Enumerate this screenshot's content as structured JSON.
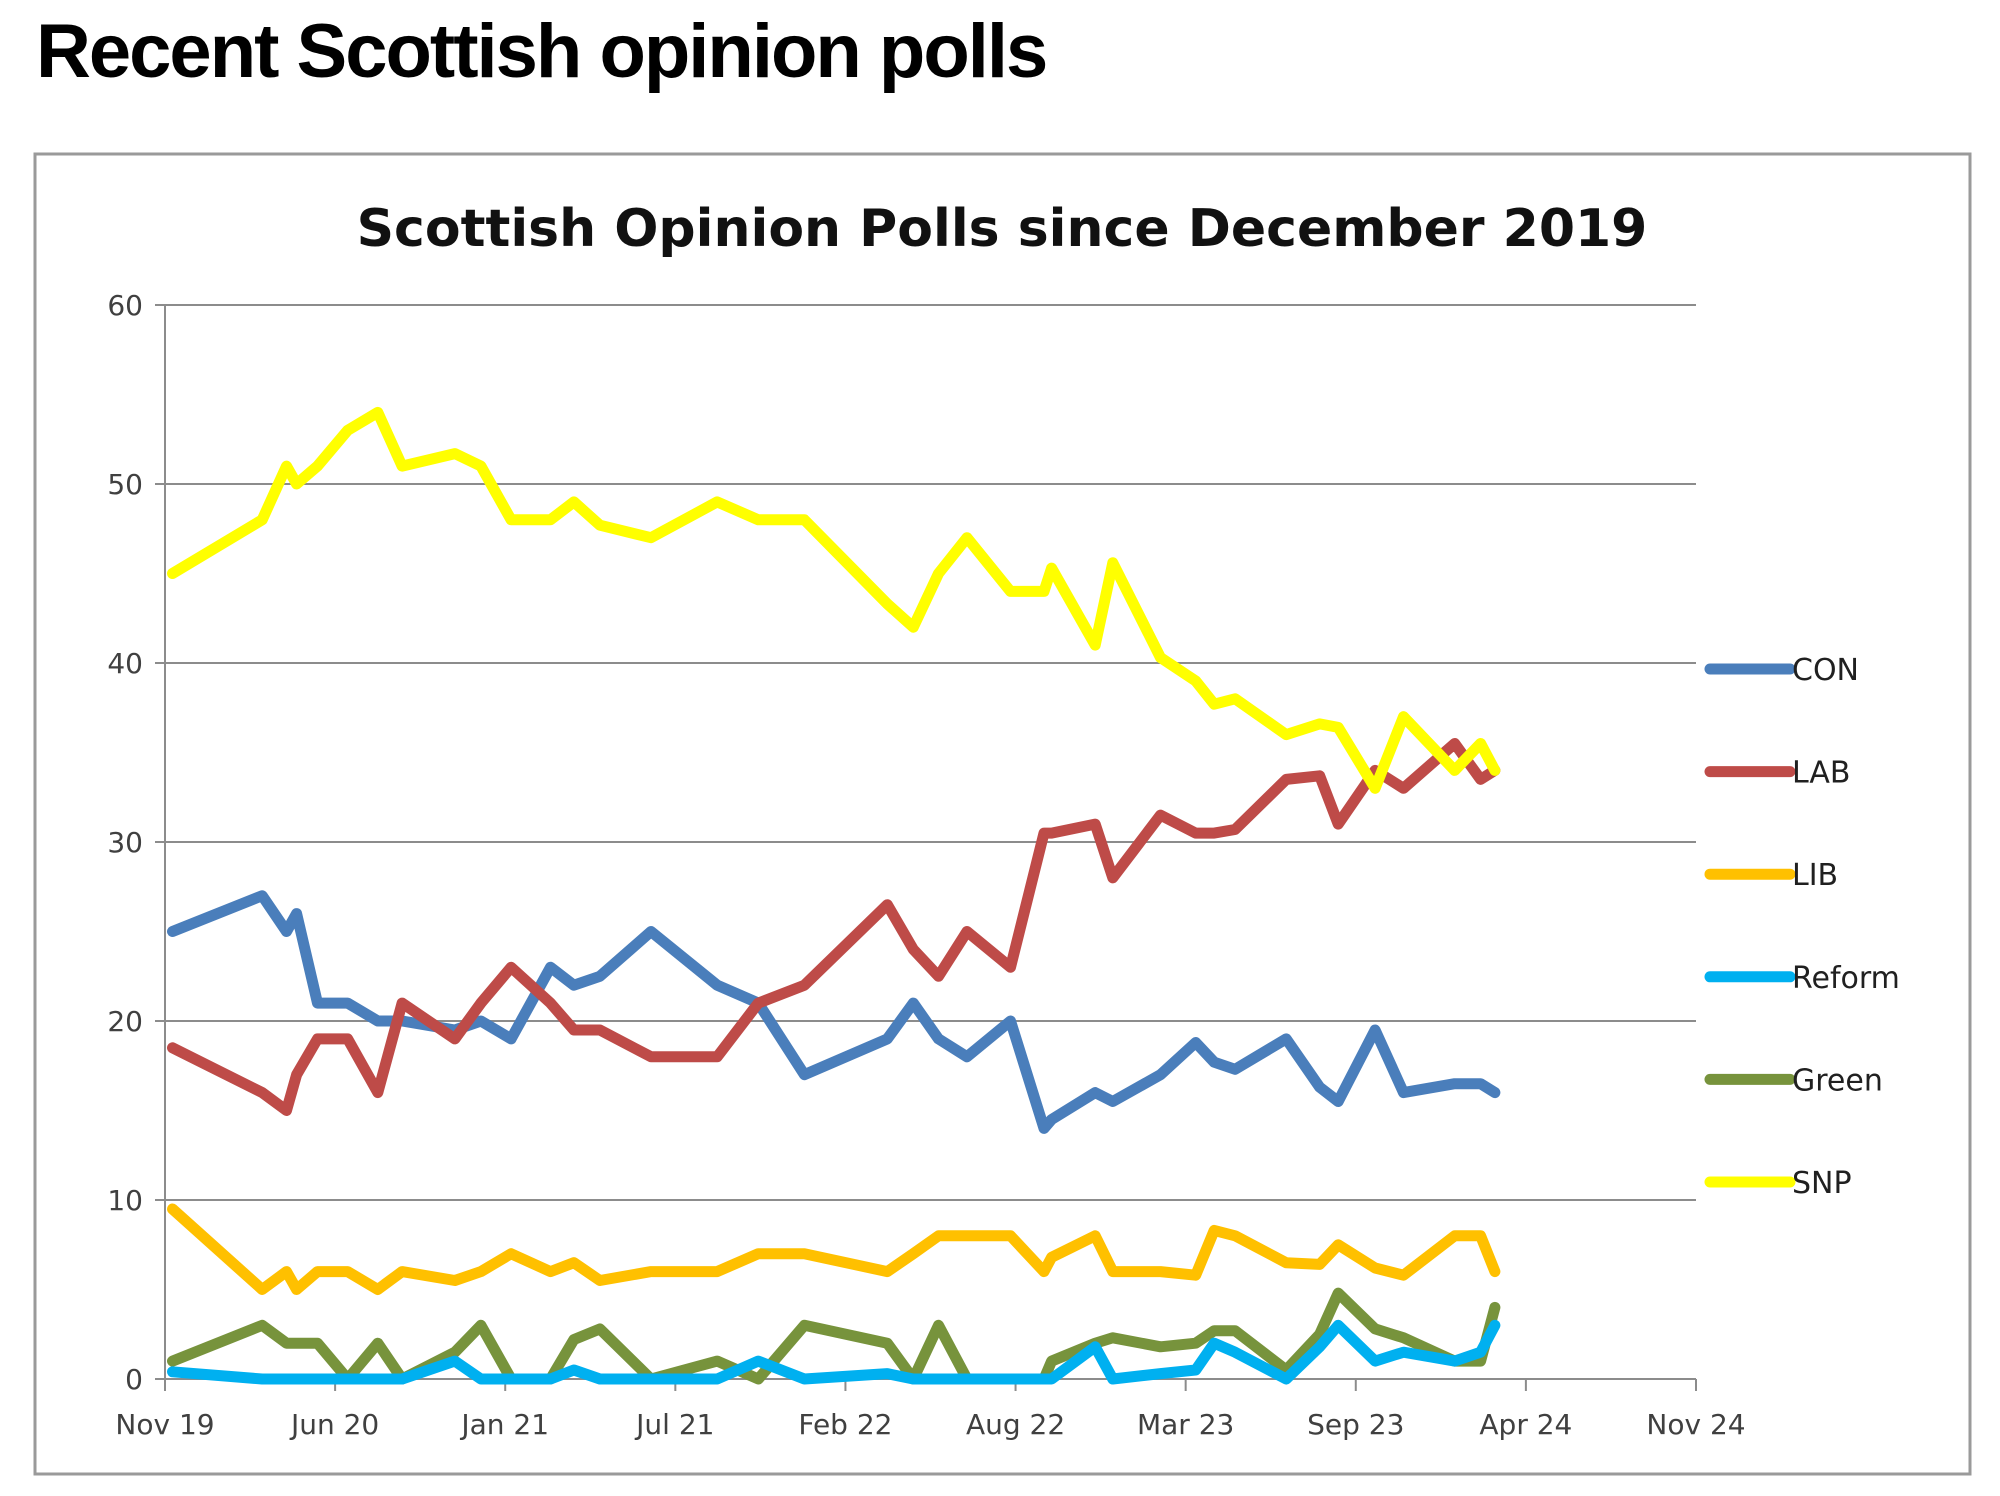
{
  "page": {
    "title": "Recent Scottish opinion polls"
  },
  "chart_data": {
    "type": "line",
    "title": "Scottish Opinion Polls since December 2019",
    "xlabel": "",
    "ylabel": "",
    "ylim": [
      0,
      60
    ],
    "yticks": [
      0,
      10,
      20,
      30,
      40,
      50,
      60
    ],
    "xlim": [
      "2019-11-01",
      "2024-11-01"
    ],
    "xtick_labels": [
      "Nov 19",
      "Jun 20",
      "Jan 21",
      "Jul 21",
      "Feb 22",
      "Aug 22",
      "Mar 23",
      "Sep 23",
      "Apr 24",
      "Nov 24"
    ],
    "grid": "horizontal",
    "legend": "right",
    "x": [
      "2019-11-10",
      "2020-02-25",
      "2020-03-25",
      "2020-04-06",
      "2020-05-01",
      "2020-06-06",
      "2020-07-12",
      "2020-08-10",
      "2020-10-12",
      "2020-11-12",
      "2020-12-18",
      "2021-02-03",
      "2021-03-03",
      "2021-04-03",
      "2021-06-03",
      "2021-08-21",
      "2021-10-09",
      "2021-12-03",
      "2022-03-12",
      "2022-04-12",
      "2022-05-12",
      "2022-06-15",
      "2022-08-06",
      "2022-09-15",
      "2022-09-24",
      "2022-11-15",
      "2022-12-06",
      "2023-02-01",
      "2023-03-15",
      "2023-04-06",
      "2023-05-01",
      "2023-07-01",
      "2023-08-10",
      "2023-09-01",
      "2023-10-15",
      "2023-11-18",
      "2024-01-18",
      "2024-02-18",
      "2024-03-06"
    ],
    "series": [
      {
        "name": "CON",
        "color": "#4a7ebb",
        "values": [
          25,
          27,
          25,
          26,
          21,
          21,
          20,
          20,
          19.5,
          20,
          19,
          23,
          22,
          22.5,
          25,
          22,
          21,
          17,
          19,
          21,
          19,
          18,
          20,
          14,
          14.5,
          16,
          15.5,
          17,
          18.8,
          17.7,
          17.3,
          19,
          16.3,
          15.5,
          19.5,
          16,
          16.5,
          16.5,
          16
        ]
      },
      {
        "name": "LAB",
        "color": "#be4b48",
        "values": [
          18.5,
          16,
          15,
          17,
          19,
          19,
          16,
          21,
          19,
          21,
          23,
          21,
          19.5,
          19.5,
          18,
          18,
          21,
          22,
          26.5,
          24,
          22.5,
          25,
          23,
          30.5,
          30.5,
          31,
          28,
          31.5,
          30.5,
          30.5,
          30.7,
          33.5,
          33.7,
          31,
          34,
          33,
          35.5,
          33.5,
          34
        ]
      },
      {
        "name": "LIB",
        "color": "#ffc000",
        "values": [
          9.5,
          5,
          6,
          5,
          6,
          6,
          5,
          6,
          5.5,
          6,
          7,
          6,
          6.5,
          5.5,
          6,
          6,
          7,
          7,
          6,
          7,
          8,
          8,
          8,
          6,
          6.8,
          8,
          6,
          6,
          5.8,
          8.3,
          8,
          6.5,
          6.4,
          7.5,
          6.2,
          5.8,
          8,
          8,
          6
        ]
      },
      {
        "name": "Reform",
        "color": "#00b0f0",
        "values": [
          0.4,
          0,
          0,
          0,
          0,
          0,
          0,
          0,
          1,
          0,
          0,
          0,
          0.5,
          0,
          0,
          0,
          1,
          0,
          0.3,
          0,
          0,
          0,
          0,
          0,
          0,
          1.8,
          0,
          0.3,
          0.5,
          2,
          1.5,
          0,
          1.8,
          3,
          1,
          1.5,
          1,
          1.5,
          3
        ]
      },
      {
        "name": "Green",
        "color": "#77933c",
        "values": [
          1,
          3,
          2,
          2,
          2,
          0,
          2,
          0,
          1.5,
          3,
          0,
          0,
          2.2,
          2.8,
          0,
          1,
          0,
          3,
          2,
          0,
          3,
          0,
          0,
          0,
          1,
          2,
          2.3,
          1.8,
          2,
          2.7,
          2.7,
          0.5,
          2.5,
          4.8,
          2.8,
          2.3,
          1,
          1,
          4
        ]
      },
      {
        "name": "SNP",
        "color": "#ffff00",
        "values": [
          45,
          48,
          51,
          50,
          51,
          53,
          54,
          51,
          51.7,
          51,
          48,
          48,
          49,
          47.7,
          47,
          49,
          48,
          48,
          43.3,
          42,
          45,
          47,
          44,
          44,
          45.3,
          41,
          45.6,
          40.3,
          39,
          37.7,
          38,
          36,
          36.6,
          36.4,
          33,
          37,
          34,
          35.5,
          34
        ]
      }
    ]
  }
}
